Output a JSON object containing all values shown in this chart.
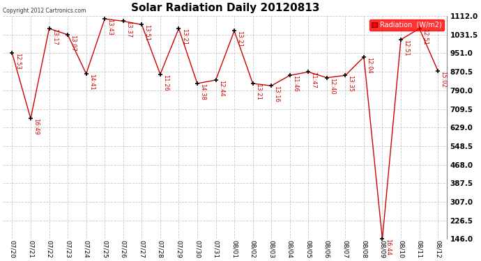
{
  "title": "Solar Radiation Daily 20120813",
  "copyright": "Copyright 2012 Cartronics.com",
  "legend_label": "Radiation  (W/m2)",
  "background_color": "#ffffff",
  "line_color": "#cc0000",
  "grid_color": "#bbbbbb",
  "x_labels": [
    "07/20",
    "07/21",
    "07/22",
    "07/23",
    "07/24",
    "07/25",
    "07/26",
    "07/27",
    "07/28",
    "07/29",
    "07/30",
    "07/31",
    "08/01",
    "08/02",
    "08/03",
    "08/04",
    "08/05",
    "08/06",
    "08/07",
    "08/08",
    "08/09",
    "08/10",
    "08/11",
    "08/12"
  ],
  "y_values": [
    951.0,
    668.0,
    1058.0,
    1031.5,
    862.0,
    1100.0,
    1090.0,
    1075.0,
    860.0,
    1058.0,
    820.0,
    835.0,
    1048.0,
    820.0,
    810.0,
    855.0,
    870.0,
    845.0,
    855.0,
    935.0,
    146.0,
    1010.0,
    1058.0,
    875.0
  ],
  "annotations": [
    "12:53",
    "16:49",
    "13:17",
    "13:07",
    "14:41",
    "13:43",
    "13:37",
    "13:51",
    "11:26",
    "13:21",
    "14:38",
    "12:44",
    "13:21",
    "13:21",
    "13:16",
    "11:46",
    "11:47",
    "12:40",
    "13:35",
    "12:04",
    "16:44",
    "12:51",
    "12:51",
    "15:02"
  ],
  "ylim": [
    146.0,
    1112.0
  ],
  "yticks": [
    146.0,
    226.5,
    307.0,
    387.5,
    468.0,
    548.5,
    629.0,
    709.5,
    790.0,
    870.5,
    951.0,
    1031.5,
    1112.0
  ]
}
